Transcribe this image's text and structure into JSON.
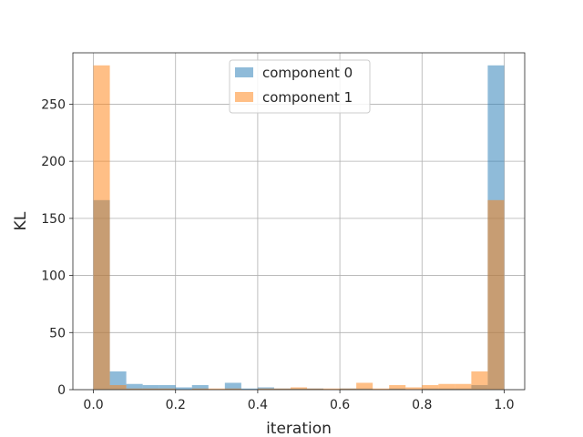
{
  "chart_data": {
    "type": "bar",
    "xlabel": "iteration",
    "ylabel": "KL",
    "xlim": [
      -0.05,
      1.05
    ],
    "ylim": [
      0,
      295
    ],
    "x_ticks": [
      0.0,
      0.2,
      0.4,
      0.6,
      0.8,
      1.0
    ],
    "x_tick_labels": [
      "0.0",
      "0.2",
      "0.4",
      "0.6",
      "0.8",
      "1.0"
    ],
    "y_ticks": [
      0,
      50,
      100,
      150,
      200,
      250
    ],
    "y_tick_labels": [
      "0",
      "50",
      "100",
      "150",
      "200",
      "250"
    ],
    "grid": true,
    "legend_position": "top-center",
    "bin_start": 0.0,
    "bin_width": 0.04,
    "series": [
      {
        "name": "component 0",
        "color": "#1f77b4",
        "values": [
          166,
          16,
          5,
          4,
          4,
          2,
          4,
          0,
          6,
          1,
          2,
          1,
          1,
          1,
          0,
          1,
          1,
          0,
          1,
          0,
          1,
          1,
          1,
          4,
          284
        ]
      },
      {
        "name": "component 1",
        "color": "#ff7f0e",
        "values": [
          284,
          4,
          1,
          1,
          1,
          0,
          1,
          1,
          1,
          0,
          1,
          1,
          2,
          1,
          1,
          1,
          6,
          1,
          4,
          2,
          4,
          5,
          5,
          16,
          166
        ]
      }
    ]
  }
}
